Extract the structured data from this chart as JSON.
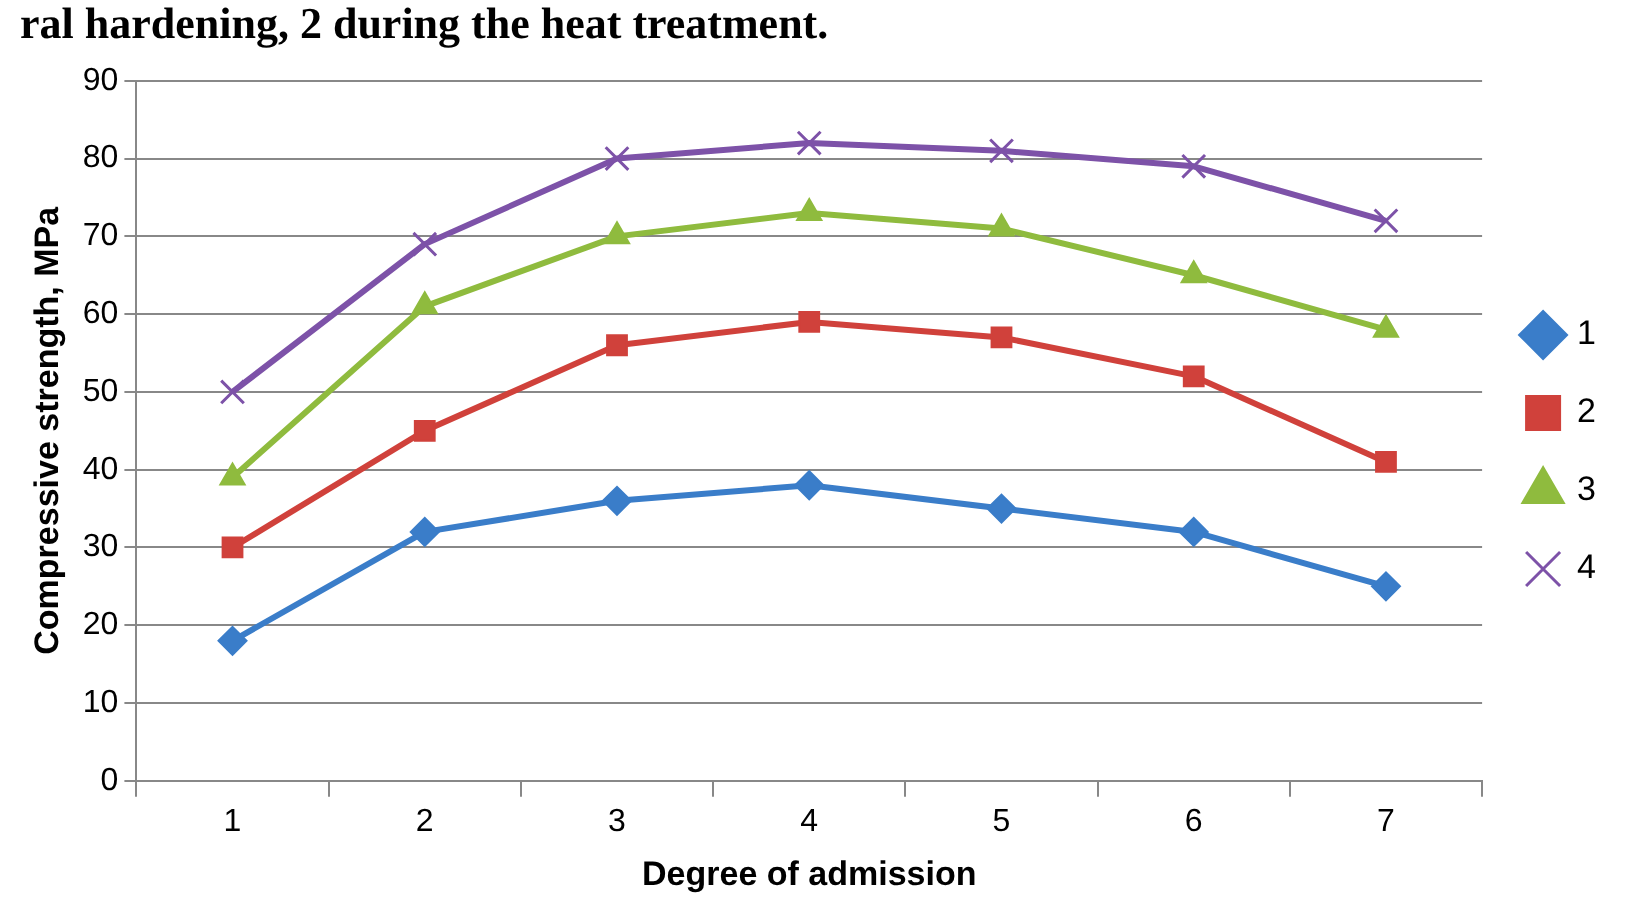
{
  "chart_data": {
    "type": "line",
    "title": "ral hardening, 2 during the heat treatment.",
    "xlabel": "Degree of admission",
    "ylabel": "Compressive strength, MPa",
    "categories": [
      "1",
      "2",
      "3",
      "4",
      "5",
      "6",
      "7"
    ],
    "series": [
      {
        "name": "1",
        "color": "#3a7dc9",
        "marker": "diamond",
        "values": [
          18,
          32,
          36,
          38,
          35,
          32,
          25
        ]
      },
      {
        "name": "2",
        "color": "#d0413b",
        "marker": "square",
        "values": [
          30,
          45,
          56,
          59,
          57,
          52,
          41
        ]
      },
      {
        "name": "3",
        "color": "#8fbb3e",
        "marker": "triangle",
        "values": [
          39,
          61,
          70,
          73,
          71,
          65,
          58
        ]
      },
      {
        "name": "4",
        "color": "#7d52a8",
        "marker": "cross",
        "values": [
          50,
          69,
          80,
          82,
          81,
          79,
          72
        ]
      }
    ],
    "ylim": [
      0,
      90
    ],
    "yticks": [
      0,
      10,
      20,
      30,
      40,
      50,
      60,
      70,
      80,
      90
    ],
    "grid": "y",
    "legend": "right",
    "line_style": "solid"
  }
}
